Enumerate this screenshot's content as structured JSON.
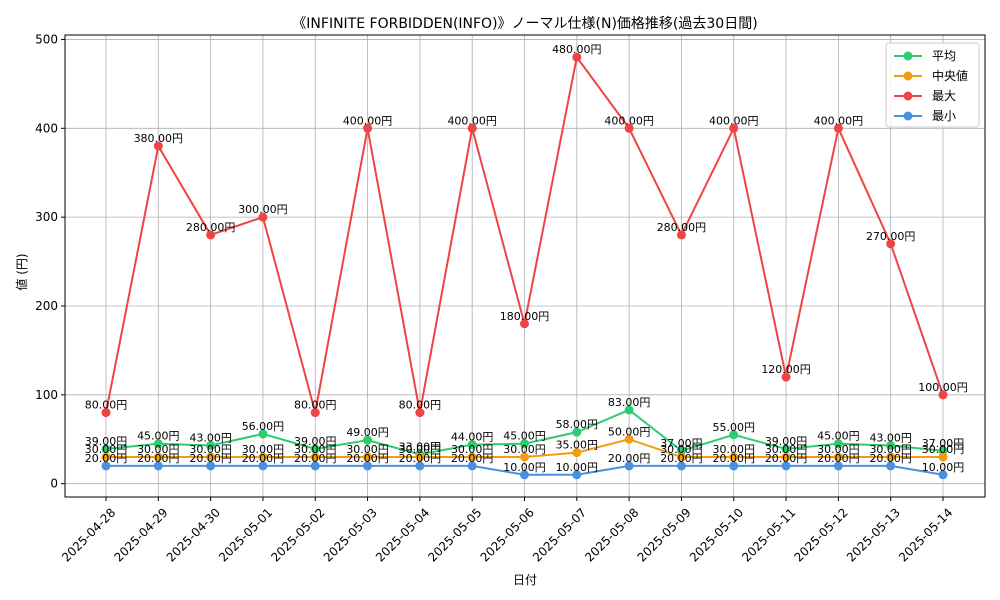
{
  "chart_data": {
    "type": "line",
    "title": "《INFINITE FORBIDDEN(INFO)》ノーマル仕様(N)価格推移(過去30日間)",
    "xlabel": "日付",
    "ylabel": "値 (円)",
    "ylim": [
      -15,
      505
    ],
    "yticks": [
      0,
      100,
      200,
      300,
      400,
      500
    ],
    "grid": true,
    "legend_position": "top-right",
    "value_suffix": "円",
    "categories": [
      "2025-04-28",
      "2025-04-29",
      "2025-04-30",
      "2025-05-01",
      "2025-05-02",
      "2025-05-03",
      "2025-05-04",
      "2025-05-05",
      "2025-05-06",
      "2025-05-07",
      "2025-05-08",
      "2025-05-09",
      "2025-05-10",
      "2025-05-11",
      "2025-05-12",
      "2025-05-13",
      "2025-05-14"
    ],
    "series": [
      {
        "name": "平均",
        "color": "#2ecc71",
        "values": [
          39,
          45,
          43,
          56,
          39,
          49,
          33,
          44,
          45,
          58,
          83,
          37,
          55,
          39,
          45,
          43,
          37
        ]
      },
      {
        "name": "中央値",
        "color": "#f39c12",
        "values": [
          30,
          30,
          30,
          30,
          30,
          30,
          30,
          30,
          30,
          35,
          50,
          30,
          30,
          30,
          30,
          30,
          30
        ]
      },
      {
        "name": "最大",
        "color": "#ef4444",
        "values": [
          80,
          380,
          280,
          300,
          80,
          400,
          80,
          400,
          180,
          480,
          400,
          280,
          400,
          120,
          400,
          270,
          100
        ]
      },
      {
        "name": "最小",
        "color": "#4a90e2",
        "values": [
          20,
          20,
          20,
          20,
          20,
          20,
          20,
          20,
          10,
          10,
          20,
          20,
          20,
          20,
          20,
          20,
          10
        ]
      }
    ]
  }
}
